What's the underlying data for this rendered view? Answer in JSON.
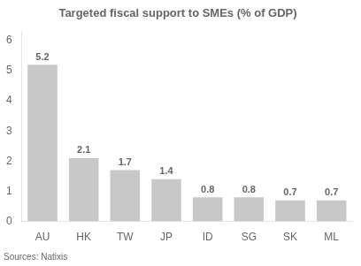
{
  "chart_data": {
    "type": "bar",
    "title": "Targeted fiscal support to SMEs (% of GDP)",
    "categories": [
      "AU",
      "HK",
      "TW",
      "JP",
      "ID",
      "SG",
      "SK",
      "ML"
    ],
    "values": [
      5.2,
      2.1,
      1.7,
      1.4,
      0.8,
      0.8,
      0.7,
      0.7
    ],
    "color": "#c8c8c8",
    "ylim": [
      0,
      6.3
    ],
    "yticks": [
      0,
      1,
      2,
      3,
      4,
      5,
      6
    ],
    "grid": false,
    "data_labels": true,
    "annotations": [
      "Sources: Natixis"
    ]
  }
}
